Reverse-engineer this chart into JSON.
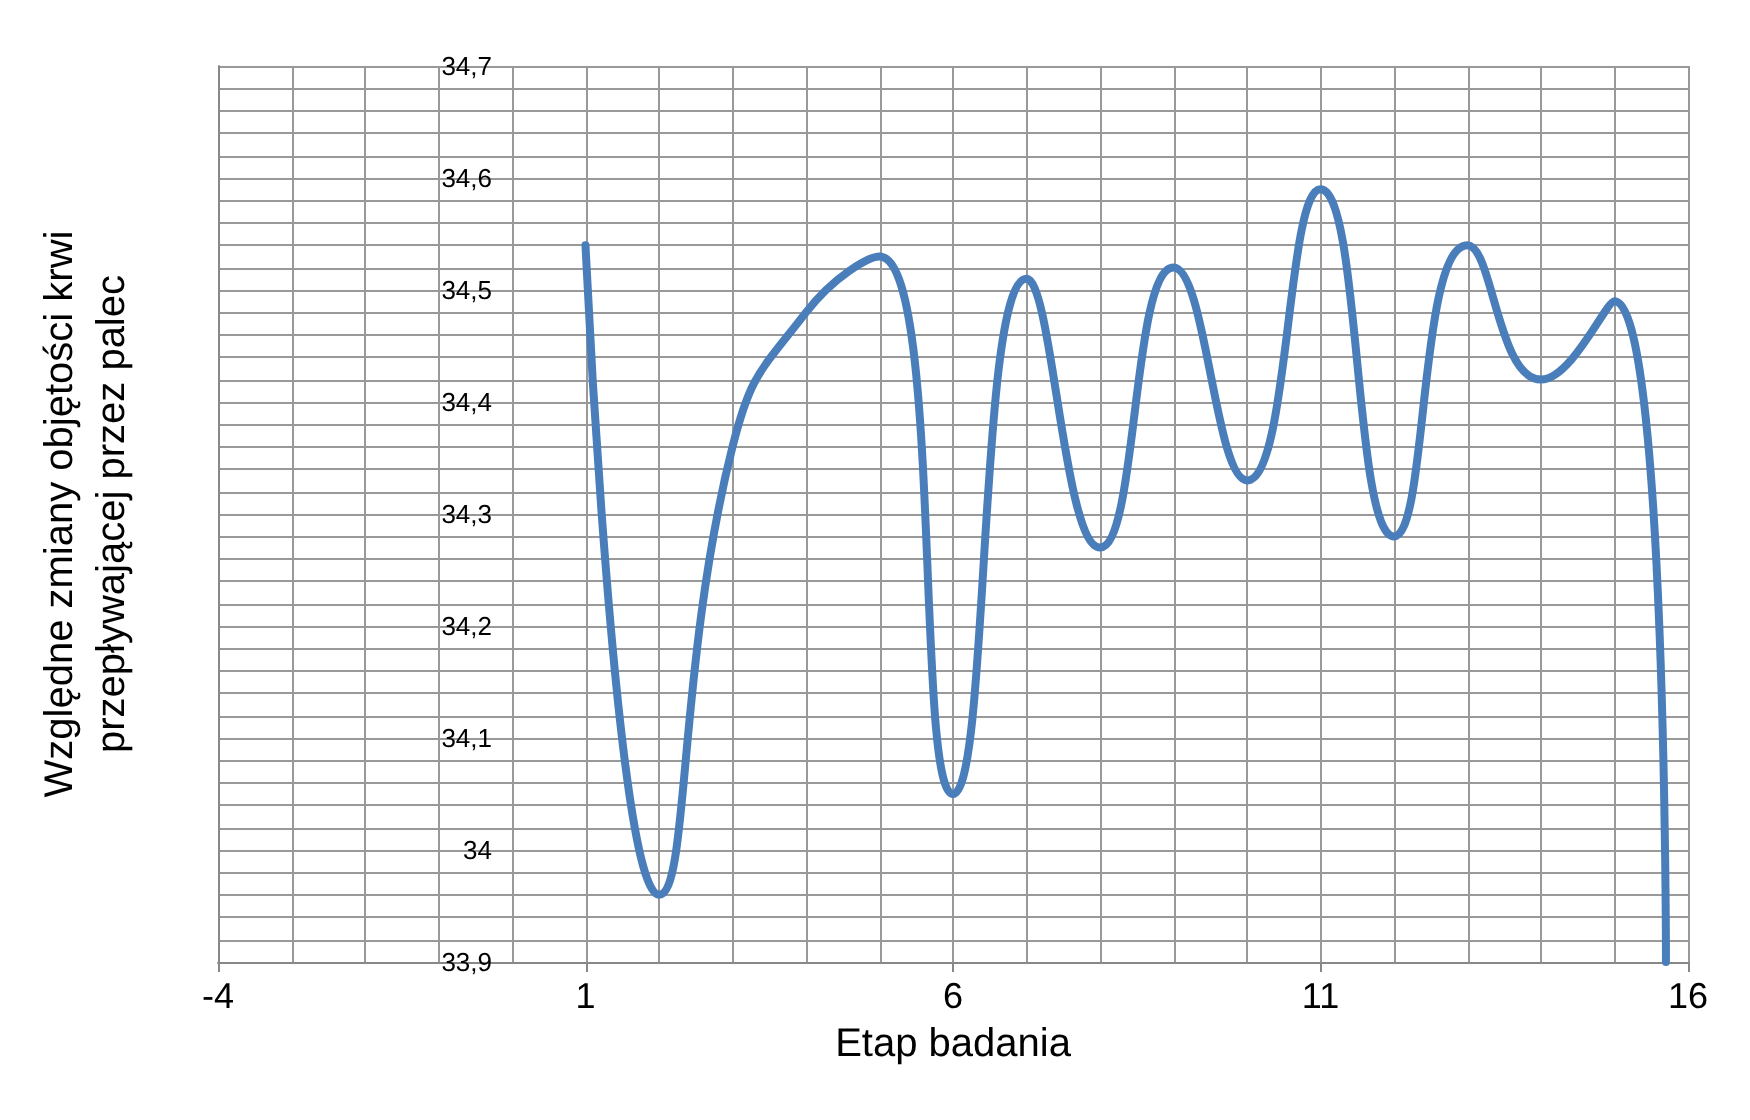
{
  "chart_data": {
    "type": "line",
    "xlabel": "Etap badania",
    "ylabel": "Względne zmiany objętości krwi przepływającej przez palec",
    "x": [
      1,
      2,
      3,
      4,
      5,
      6,
      7,
      8,
      9,
      10,
      11,
      12,
      13,
      14,
      15,
      15.7
    ],
    "series": [
      {
        "color": "#4a7ebb",
        "values": [
          34.54,
          33.96,
          34.36,
          34.48,
          34.53,
          34.05,
          34.51,
          34.27,
          34.52,
          34.33,
          34.59,
          34.28,
          34.54,
          34.42,
          34.49,
          33.9
        ]
      }
    ],
    "xlim": [
      -4,
      16
    ],
    "xticks": [
      -4,
      1,
      6,
      11,
      16
    ],
    "ylim": [
      33.9,
      34.7
    ],
    "yticks": [
      {
        "value": 33.9,
        "label": "33,9"
      },
      34,
      {
        "value": 34.1,
        "label": "34,1"
      },
      {
        "value": 34.2,
        "label": "34,2"
      },
      {
        "value": 34.3,
        "label": "34,3"
      },
      {
        "value": 34.4,
        "label": "34,4"
      },
      {
        "value": 34.5,
        "label": "34,5"
      },
      {
        "value": 34.6,
        "label": "34,6"
      },
      {
        "value": 34.7,
        "label": "34,7"
      }
    ],
    "grid": true,
    "marker": "none",
    "line_style": "solid"
  }
}
